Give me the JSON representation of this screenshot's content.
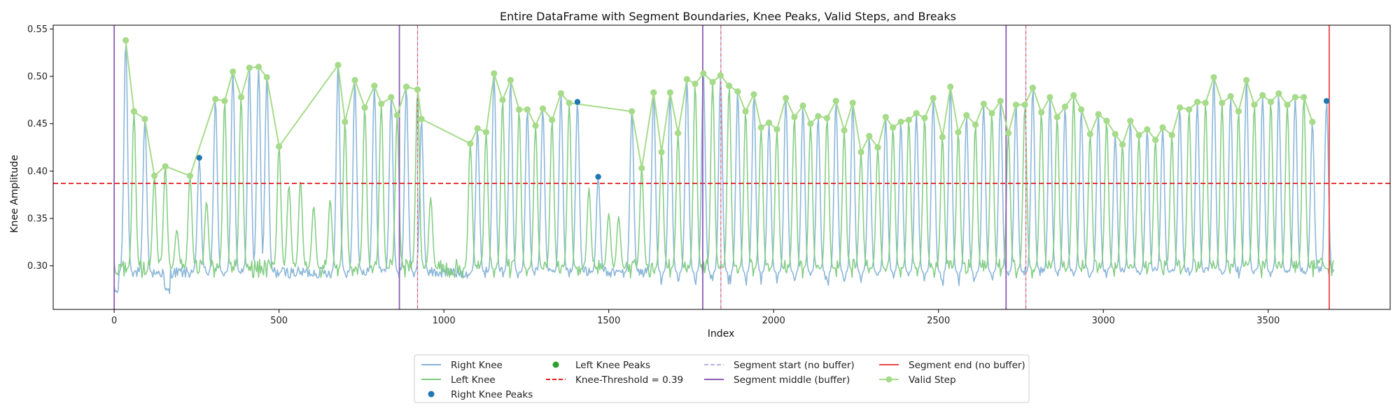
{
  "chart_data": {
    "type": "line",
    "title": "Entire DataFrame with Segment Boundaries, Knee Peaks, Valid Steps, and Breaks",
    "xlabel": "Index",
    "ylabel": "Knee Amplitude",
    "xlim": [
      -185,
      3870
    ],
    "ylim": [
      0.254,
      0.554
    ],
    "x_ticks": [
      0,
      500,
      1000,
      1500,
      2000,
      2500,
      3000,
      3500
    ],
    "y_ticks": [
      0.3,
      0.35,
      0.4,
      0.45,
      0.5,
      0.55
    ],
    "threshold": 0.387,
    "colors": {
      "right_knee": "#86b3d6",
      "left_knee": "#7fcb7f",
      "right_peak": "#1f77b4",
      "left_peak": "#2ca02c",
      "threshold": "#e31a1c",
      "segment_start": "#b7b0e0",
      "segment_middle": "#8e5cb6",
      "segment_end": "#e8474b",
      "valid_step": "#a6db8a"
    },
    "segment_middle_lines": [
      0,
      865,
      1785,
      2705
    ],
    "segment_start_lines": [
      920,
      1840,
      2765
    ],
    "segment_end_lines": [
      3685
    ],
    "right_knee_peaks": {
      "x": [
        258,
        1405,
        1468,
        3677
      ],
      "y": [
        0.414,
        0.473,
        0.394,
        0.474
      ]
    },
    "right_knee_peak_lines": [
      [
        35,
        0.538
      ],
      [
        93,
        0.455
      ],
      [
        258,
        0.414
      ],
      [
        307,
        0.476
      ],
      [
        360,
        0.505
      ],
      [
        410,
        0.509
      ],
      [
        438,
        0.51
      ],
      [
        463,
        0.499
      ],
      [
        679,
        0.512
      ],
      [
        730,
        0.496
      ],
      [
        789,
        0.49
      ],
      [
        840,
        0.478
      ],
      [
        886,
        0.489
      ],
      [
        932,
        0.455
      ],
      [
        1102,
        0.445
      ],
      [
        1152,
        0.503
      ],
      [
        1202,
        0.496
      ],
      [
        1253,
        0.465
      ],
      [
        1300,
        0.466
      ],
      [
        1355,
        0.482
      ],
      [
        1405,
        0.473
      ],
      [
        1468,
        0.394
      ],
      [
        1570,
        0.463
      ],
      [
        1636,
        0.483
      ],
      [
        1686,
        0.483
      ],
      [
        1737,
        0.497
      ],
      [
        1787,
        0.503
      ],
      [
        1839,
        0.501
      ],
      [
        1891,
        0.484
      ],
      [
        1940,
        0.481
      ],
      [
        1986,
        0.451
      ],
      [
        2037,
        0.477
      ],
      [
        2089,
        0.469
      ],
      [
        2135,
        0.458
      ],
      [
        2189,
        0.474
      ],
      [
        2240,
        0.472
      ],
      [
        2290,
        0.437
      ],
      [
        2340,
        0.457
      ],
      [
        2386,
        0.452
      ],
      [
        2433,
        0.461
      ],
      [
        2484,
        0.477
      ],
      [
        2536,
        0.489
      ],
      [
        2585,
        0.459
      ],
      [
        2637,
        0.471
      ],
      [
        2688,
        0.474
      ],
      [
        2735,
        0.47
      ],
      [
        2786,
        0.488
      ],
      [
        2838,
        0.478
      ],
      [
        2884,
        0.468
      ],
      [
        2933,
        0.465
      ],
      [
        2985,
        0.46
      ],
      [
        3036,
        0.439
      ],
      [
        3082,
        0.453
      ],
      [
        3133,
        0.444
      ],
      [
        3180,
        0.446
      ],
      [
        3232,
        0.467
      ],
      [
        3285,
        0.473
      ],
      [
        3335,
        0.499
      ],
      [
        3386,
        0.479
      ],
      [
        3434,
        0.496
      ],
      [
        3483,
        0.48
      ],
      [
        3532,
        0.482
      ],
      [
        3582,
        0.478
      ],
      [
        3634,
        0.452
      ],
      [
        3677,
        0.474
      ]
    ],
    "left_knee_peak_lines": [
      [
        60,
        0.463
      ],
      [
        122,
        0.395
      ],
      [
        155,
        0.405
      ],
      [
        190,
        0.338
      ],
      [
        230,
        0.395
      ],
      [
        280,
        0.368
      ],
      [
        335,
        0.474
      ],
      [
        385,
        0.478
      ],
      [
        500,
        0.426
      ],
      [
        530,
        0.385
      ],
      [
        565,
        0.39
      ],
      [
        605,
        0.363
      ],
      [
        655,
        0.37
      ],
      [
        700,
        0.452
      ],
      [
        760,
        0.467
      ],
      [
        810,
        0.471
      ],
      [
        858,
        0.459
      ],
      [
        920,
        0.486
      ],
      [
        960,
        0.372
      ],
      [
        1080,
        0.429
      ],
      [
        1128,
        0.441
      ],
      [
        1178,
        0.475
      ],
      [
        1228,
        0.465
      ],
      [
        1278,
        0.448
      ],
      [
        1328,
        0.454
      ],
      [
        1380,
        0.472
      ],
      [
        1440,
        0.382
      ],
      [
        1500,
        0.355
      ],
      [
        1530,
        0.352
      ],
      [
        1600,
        0.403
      ],
      [
        1660,
        0.42
      ],
      [
        1710,
        0.44
      ],
      [
        1762,
        0.492
      ],
      [
        1815,
        0.494
      ],
      [
        1865,
        0.49
      ],
      [
        1915,
        0.463
      ],
      [
        1962,
        0.446
      ],
      [
        2010,
        0.444
      ],
      [
        2063,
        0.457
      ],
      [
        2112,
        0.45
      ],
      [
        2162,
        0.456
      ],
      [
        2214,
        0.443
      ],
      [
        2265,
        0.42
      ],
      [
        2316,
        0.425
      ],
      [
        2362,
        0.446
      ],
      [
        2410,
        0.454
      ],
      [
        2458,
        0.456
      ],
      [
        2512,
        0.436
      ],
      [
        2560,
        0.441
      ],
      [
        2612,
        0.449
      ],
      [
        2662,
        0.461
      ],
      [
        2712,
        0.44
      ],
      [
        2762,
        0.47
      ],
      [
        2812,
        0.462
      ],
      [
        2860,
        0.457
      ],
      [
        2910,
        0.48
      ],
      [
        2960,
        0.439
      ],
      [
        3010,
        0.453
      ],
      [
        3058,
        0.428
      ],
      [
        3108,
        0.438
      ],
      [
        3158,
        0.433
      ],
      [
        3208,
        0.438
      ],
      [
        3260,
        0.465
      ],
      [
        3310,
        0.472
      ],
      [
        3360,
        0.472
      ],
      [
        3410,
        0.463
      ],
      [
        3458,
        0.47
      ],
      [
        3508,
        0.473
      ],
      [
        3558,
        0.47
      ],
      [
        3608,
        0.478
      ],
      [
        3660,
        0.308
      ]
    ],
    "valid_steps": {
      "x": [
        35,
        60,
        93,
        122,
        155,
        230,
        307,
        335,
        360,
        385,
        410,
        438,
        463,
        500,
        679,
        700,
        730,
        760,
        789,
        810,
        840,
        858,
        886,
        920,
        932,
        1080,
        1102,
        1128,
        1152,
        1178,
        1202,
        1228,
        1253,
        1278,
        1300,
        1328,
        1355,
        1380,
        1570,
        1600,
        1636,
        1660,
        1686,
        1710,
        1737,
        1762,
        1787,
        1815,
        1839,
        1865,
        1891,
        1915,
        1940,
        1962,
        1986,
        2010,
        2037,
        2063,
        2089,
        2112,
        2135,
        2162,
        2189,
        2214,
        2240,
        2265,
        2290,
        2316,
        2340,
        2362,
        2386,
        2410,
        2433,
        2458,
        2484,
        2512,
        2536,
        2560,
        2585,
        2612,
        2637,
        2662,
        2688,
        2712,
        2735,
        2762,
        2786,
        2812,
        2838,
        2860,
        2884,
        2910,
        2933,
        2960,
        2985,
        3010,
        3036,
        3058,
        3082,
        3108,
        3133,
        3158,
        3180,
        3208,
        3232,
        3260,
        3285,
        3310,
        3335,
        3360,
        3386,
        3410,
        3434,
        3458,
        3483,
        3508,
        3532,
        3558,
        3582,
        3608,
        3634
      ],
      "y": [
        0.538,
        0.463,
        0.455,
        0.395,
        0.405,
        0.395,
        0.476,
        0.474,
        0.505,
        0.478,
        0.509,
        0.51,
        0.499,
        0.426,
        0.512,
        0.452,
        0.496,
        0.467,
        0.49,
        0.471,
        0.478,
        0.459,
        0.489,
        0.486,
        0.455,
        0.429,
        0.445,
        0.441,
        0.503,
        0.475,
        0.496,
        0.465,
        0.465,
        0.448,
        0.466,
        0.454,
        0.482,
        0.472,
        0.463,
        0.403,
        0.483,
        0.42,
        0.483,
        0.44,
        0.497,
        0.492,
        0.503,
        0.494,
        0.501,
        0.49,
        0.484,
        0.463,
        0.481,
        0.446,
        0.451,
        0.444,
        0.477,
        0.457,
        0.469,
        0.45,
        0.458,
        0.456,
        0.474,
        0.443,
        0.472,
        0.42,
        0.437,
        0.425,
        0.457,
        0.446,
        0.452,
        0.454,
        0.461,
        0.456,
        0.477,
        0.436,
        0.489,
        0.441,
        0.459,
        0.449,
        0.471,
        0.461,
        0.474,
        0.44,
        0.47,
        0.47,
        0.488,
        0.462,
        0.478,
        0.457,
        0.468,
        0.48,
        0.465,
        0.439,
        0.46,
        0.453,
        0.439,
        0.428,
        0.453,
        0.438,
        0.444,
        0.433,
        0.446,
        0.438,
        0.467,
        0.465,
        0.473,
        0.472,
        0.499,
        0.472,
        0.479,
        0.463,
        0.496,
        0.47,
        0.48,
        0.473,
        0.482,
        0.47,
        0.478,
        0.478,
        0.452
      ]
    },
    "legend": {
      "placement": "bottom-center",
      "columns": [
        [
          {
            "key": "right_knee",
            "kind": "line",
            "label": "Right Knee"
          },
          {
            "key": "left_knee",
            "kind": "line",
            "label": "Left Knee"
          },
          {
            "key": "right_peak",
            "kind": "dot",
            "label": "Right Knee Peaks"
          }
        ],
        [
          {
            "key": "left_peak",
            "kind": "dot",
            "label": "Left Knee Peaks"
          },
          {
            "key": "threshold",
            "kind": "dash",
            "label": "Knee-Threshold = 0.39"
          }
        ],
        [
          {
            "key": "segment_start",
            "kind": "dash",
            "label": "Segment start (no buffer)"
          },
          {
            "key": "segment_middle",
            "kind": "line",
            "label": "Segment middle (buffer)"
          }
        ],
        [
          {
            "key": "segment_end",
            "kind": "line",
            "label": "Segment end (no buffer)"
          },
          {
            "key": "valid_step",
            "kind": "linedot",
            "label": "Valid Step"
          }
        ]
      ]
    }
  }
}
